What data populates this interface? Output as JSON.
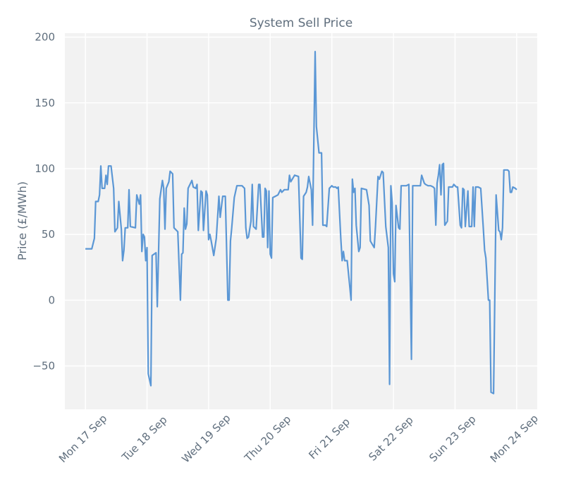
{
  "chart_data": {
    "type": "line",
    "title": "System Sell Price",
    "y_label": "Price (£/MWh)",
    "grid": true,
    "xlim": [
      -8,
      176
    ],
    "ylim": [
      -83,
      203
    ],
    "xticks": [
      {
        "value": 0,
        "label": "Mon 17 Sep"
      },
      {
        "value": 24,
        "label": "Tue 18 Sep"
      },
      {
        "value": 48,
        "label": "Wed 19 Sep"
      },
      {
        "value": 72,
        "label": "Thu 20 Sep"
      },
      {
        "value": 96,
        "label": "Fri 21 Sep"
      },
      {
        "value": 120,
        "label": "Sat 22 Sep"
      },
      {
        "value": 144,
        "label": "Sun 23 Sep"
      },
      {
        "value": 168,
        "label": "Mon 24 Sep"
      }
    ],
    "yticks": [
      {
        "value": -50,
        "label": "−50"
      },
      0,
      50,
      100,
      150,
      200
    ],
    "series": [
      {
        "color": "#5b97d5",
        "x": [
          0,
          2.5,
          3.5,
          4,
          5,
          5.5,
          6,
          6.5,
          7.5,
          8,
          8.5,
          9,
          10,
          11,
          11.5,
          12.5,
          13,
          14,
          14.5,
          15,
          15.5,
          16.5,
          17,
          17.5,
          19.5,
          20,
          21,
          21.5,
          22,
          22.5,
          23,
          23.5,
          24,
          24.5,
          25.5,
          26,
          27.5,
          28,
          29,
          30,
          30.5,
          31,
          31.5,
          32.5,
          33,
          34,
          34.5,
          36,
          37,
          37.5,
          38,
          38.5,
          39,
          39.5,
          40,
          41.5,
          42,
          43,
          43.5,
          44,
          45,
          45.5,
          46,
          47,
          47.5,
          48,
          48.5,
          49,
          50,
          51,
          52,
          52.5,
          53.5,
          54.5,
          55.5,
          56,
          56.5,
          57,
          58,
          59,
          61,
          62,
          62.5,
          63,
          63.5,
          64.5,
          65,
          65.5,
          66.5,
          67.5,
          68,
          69,
          69.5,
          70,
          70.5,
          71,
          71.5,
          72,
          72.5,
          73,
          74,
          75,
          76,
          76.5,
          77.5,
          79,
          79.5,
          80,
          81.5,
          83,
          84,
          84.5,
          85,
          86,
          86.5,
          87,
          88,
          88.5,
          89.5,
          90,
          91,
          92,
          92.5,
          93.5,
          94,
          95,
          96,
          96.5,
          97.5,
          98,
          98.5,
          99.5,
          100,
          100.5,
          101,
          102,
          103,
          103.5,
          104,
          104.5,
          105,
          105.5,
          106.5,
          107,
          107.5,
          109.5,
          110.5,
          111,
          112.5,
          113,
          114,
          114.5,
          115.5,
          116,
          117,
          117.5,
          118,
          118.5,
          119,
          119.5,
          120,
          120.5,
          121,
          122,
          122.5,
          123,
          125,
          126,
          127,
          127.5,
          130.5,
          131,
          132,
          132.5,
          133.5,
          134.5,
          135.5,
          136,
          136.5,
          137,
          137.5,
          138,
          138.5,
          139,
          139.5,
          140,
          141,
          141.5,
          143,
          143.5,
          144.5,
          145,
          146,
          146.5,
          147,
          147.5,
          148,
          149,
          149.5,
          150.5,
          151,
          151.5,
          152,
          153,
          154,
          155,
          155.5,
          156,
          157,
          157.5,
          158,
          159,
          160,
          161,
          161.5,
          162,
          162.5,
          163,
          164.5,
          165,
          165.5,
          166,
          166.5,
          167.5,
          168
        ],
        "values": [
          39,
          39,
          47,
          75,
          75,
          80,
          102,
          85,
          85,
          95,
          88,
          102,
          102,
          85,
          52,
          55,
          75,
          54,
          30,
          38,
          55,
          55,
          84,
          56,
          55,
          80,
          73,
          80,
          37,
          50,
          48,
          30,
          40,
          -56,
          -65,
          34,
          36,
          -5,
          77,
          91,
          85,
          54,
          85,
          90,
          98,
          96,
          55,
          52,
          0,
          35,
          36,
          70,
          54,
          58,
          85,
          91,
          86,
          85,
          88,
          53,
          83,
          82,
          53,
          83,
          80,
          46,
          50,
          45,
          34,
          47,
          79,
          63,
          79,
          79,
          0,
          0,
          45,
          55,
          78,
          87,
          87,
          85,
          55,
          47,
          48,
          60,
          88,
          56,
          54,
          88,
          88,
          48,
          48,
          85,
          83,
          40,
          83,
          35,
          32,
          78,
          79,
          80,
          84,
          82,
          84,
          84,
          95,
          90,
          95,
          94,
          32,
          31,
          79,
          82,
          86,
          94,
          84,
          57,
          189,
          132,
          112,
          112,
          57,
          57,
          56,
          85,
          87,
          86,
          86,
          85,
          86,
          47,
          30,
          37,
          30,
          30,
          10,
          0,
          92,
          82,
          85,
          57,
          37,
          40,
          85,
          84,
          72,
          45,
          40,
          56,
          94,
          92,
          98,
          97,
          56,
          48,
          40,
          -64,
          87,
          74,
          20,
          14,
          72,
          55,
          54,
          87,
          87,
          88,
          -45,
          87,
          87,
          95,
          89,
          88,
          87,
          87,
          86,
          85,
          57,
          89,
          95,
          103,
          80,
          103,
          104,
          57,
          60,
          86,
          86,
          88,
          86,
          86,
          57,
          55,
          85,
          84,
          56,
          83,
          56,
          56,
          86,
          56,
          86,
          86,
          85,
          55,
          38,
          32,
          0,
          0,
          -70,
          -71,
          80,
          53,
          52,
          46,
          55,
          99,
          99,
          98,
          82,
          82,
          86,
          85,
          84
        ]
      }
    ]
  }
}
